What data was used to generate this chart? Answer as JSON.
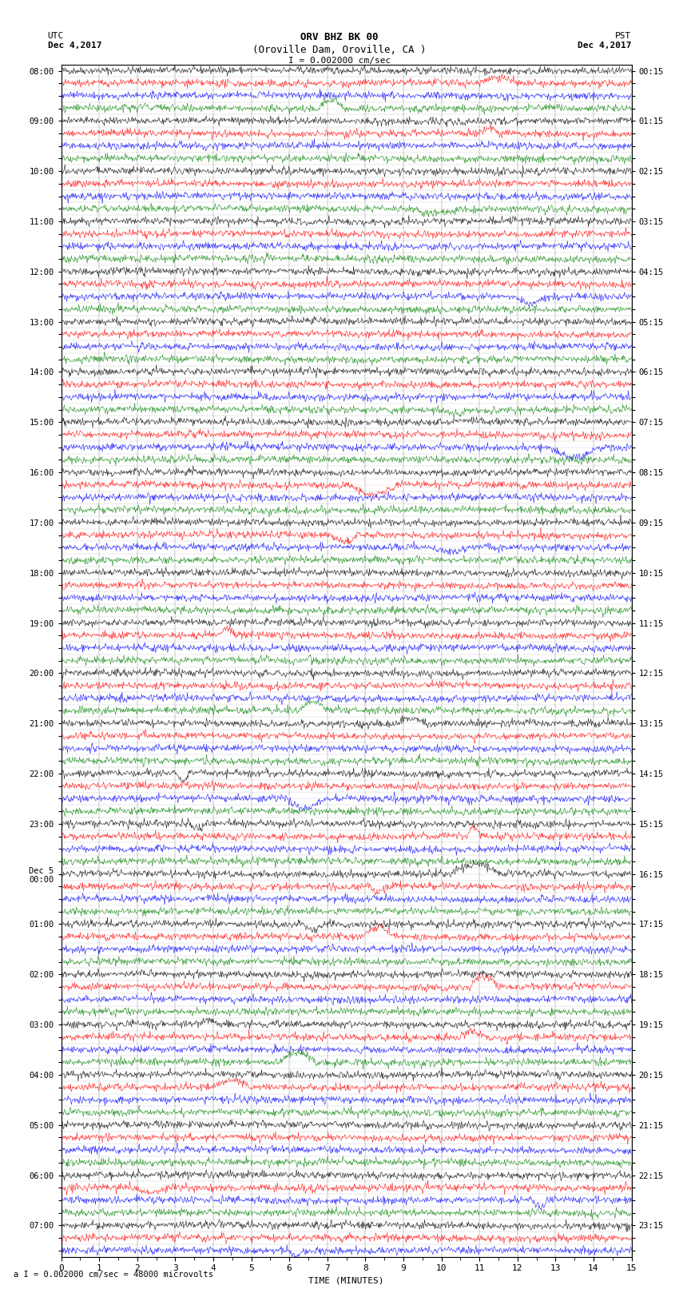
{
  "title_line1": "ORV BHZ BK 00",
  "title_line2": "(Oroville Dam, Oroville, CA )",
  "scale_label": "I = 0.002000 cm/sec",
  "bottom_label": "a I = 0.002000 cm/sec = 48000 microvolts",
  "utc_label": "UTC",
  "utc_date": "Dec 4,2017",
  "pst_label": "PST",
  "pst_date": "Dec 4,2017",
  "xlabel": "TIME (MINUTES)",
  "x_ticks": [
    0,
    1,
    2,
    3,
    4,
    5,
    6,
    7,
    8,
    9,
    10,
    11,
    12,
    13,
    14,
    15
  ],
  "time_minutes": 15,
  "rows_per_hour": 4,
  "trace_colors": [
    "black",
    "red",
    "blue",
    "green"
  ],
  "background_color": "white",
  "noise_amplitude": 0.15,
  "left_times_utc": [
    "08:00",
    "",
    "",
    "",
    "09:00",
    "",
    "",
    "",
    "10:00",
    "",
    "",
    "",
    "11:00",
    "",
    "",
    "",
    "12:00",
    "",
    "",
    "",
    "13:00",
    "",
    "",
    "",
    "14:00",
    "",
    "",
    "",
    "15:00",
    "",
    "",
    "",
    "16:00",
    "",
    "",
    "",
    "17:00",
    "",
    "",
    "",
    "18:00",
    "",
    "",
    "",
    "19:00",
    "",
    "",
    "",
    "20:00",
    "",
    "",
    "",
    "21:00",
    "",
    "",
    "",
    "22:00",
    "",
    "",
    "",
    "23:00",
    "",
    "",
    "",
    "Dec 5\n00:00",
    "",
    "",
    "",
    "01:00",
    "",
    "",
    "",
    "02:00",
    "",
    "",
    "",
    "03:00",
    "",
    "",
    "",
    "04:00",
    "",
    "",
    "",
    "05:00",
    "",
    "",
    "",
    "06:00",
    "",
    "",
    "",
    "07:00",
    "",
    ""
  ],
  "right_times_pst": [
    "00:15",
    "",
    "",
    "",
    "01:15",
    "",
    "",
    "",
    "02:15",
    "",
    "",
    "",
    "03:15",
    "",
    "",
    "",
    "04:15",
    "",
    "",
    "",
    "05:15",
    "",
    "",
    "",
    "06:15",
    "",
    "",
    "",
    "07:15",
    "",
    "",
    "",
    "08:15",
    "",
    "",
    "",
    "09:15",
    "",
    "",
    "",
    "10:15",
    "",
    "",
    "",
    "11:15",
    "",
    "",
    "",
    "12:15",
    "",
    "",
    "",
    "13:15",
    "",
    "",
    "",
    "14:15",
    "",
    "",
    "",
    "15:15",
    "",
    "",
    "",
    "16:15",
    "",
    "",
    "",
    "17:15",
    "",
    "",
    "",
    "18:15",
    "",
    "",
    "",
    "19:15",
    "",
    "",
    "",
    "20:15",
    "",
    "",
    "",
    "21:15",
    "",
    "",
    "",
    "22:15",
    "",
    "",
    "",
    "23:15",
    "",
    ""
  ]
}
